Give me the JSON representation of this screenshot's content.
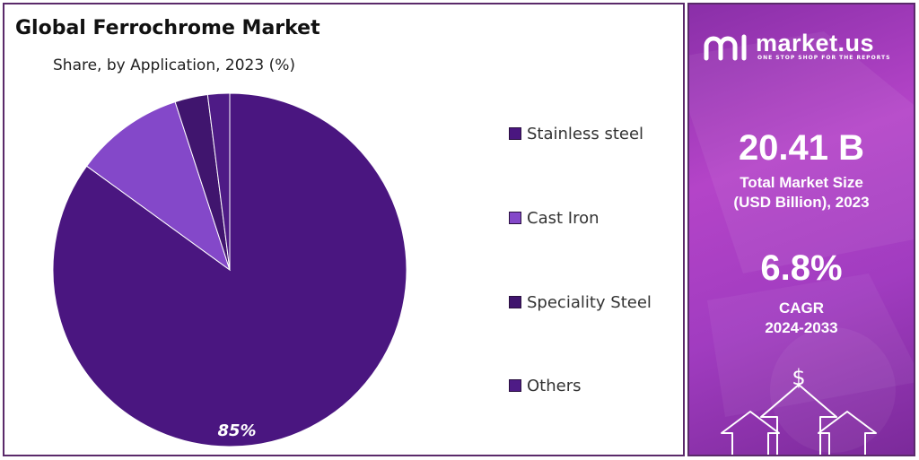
{
  "chart_data": {
    "type": "pie",
    "title": "Global Ferrochrome Market",
    "subtitle": "Share, by Application, 2023 (%)",
    "categories": [
      "Stainless steel",
      "Cast Iron",
      "Speciality Steel",
      "Others"
    ],
    "values": [
      85,
      10,
      3,
      2
    ],
    "data_labels": [
      "85%",
      "",
      "",
      ""
    ],
    "colors": [
      "#4a1680",
      "#8448c9",
      "#40156e",
      "#4e1b86"
    ],
    "legend_position": "right"
  },
  "side_panel": {
    "brand_name": "market.us",
    "brand_tagline": "ONE STOP SHOP FOR THE REPORTS",
    "market_size_value": "20.41 B",
    "market_size_label_line1": "Total Market Size",
    "market_size_label_line2": "(USD Billion), 2023",
    "cagr_value": "6.8%",
    "cagr_label": "CAGR",
    "cagr_period": "2024-2033",
    "dollar_symbol": "$",
    "icons": [
      "market-us-logo-icon",
      "dollar-icon",
      "arrow-up-icon"
    ]
  }
}
